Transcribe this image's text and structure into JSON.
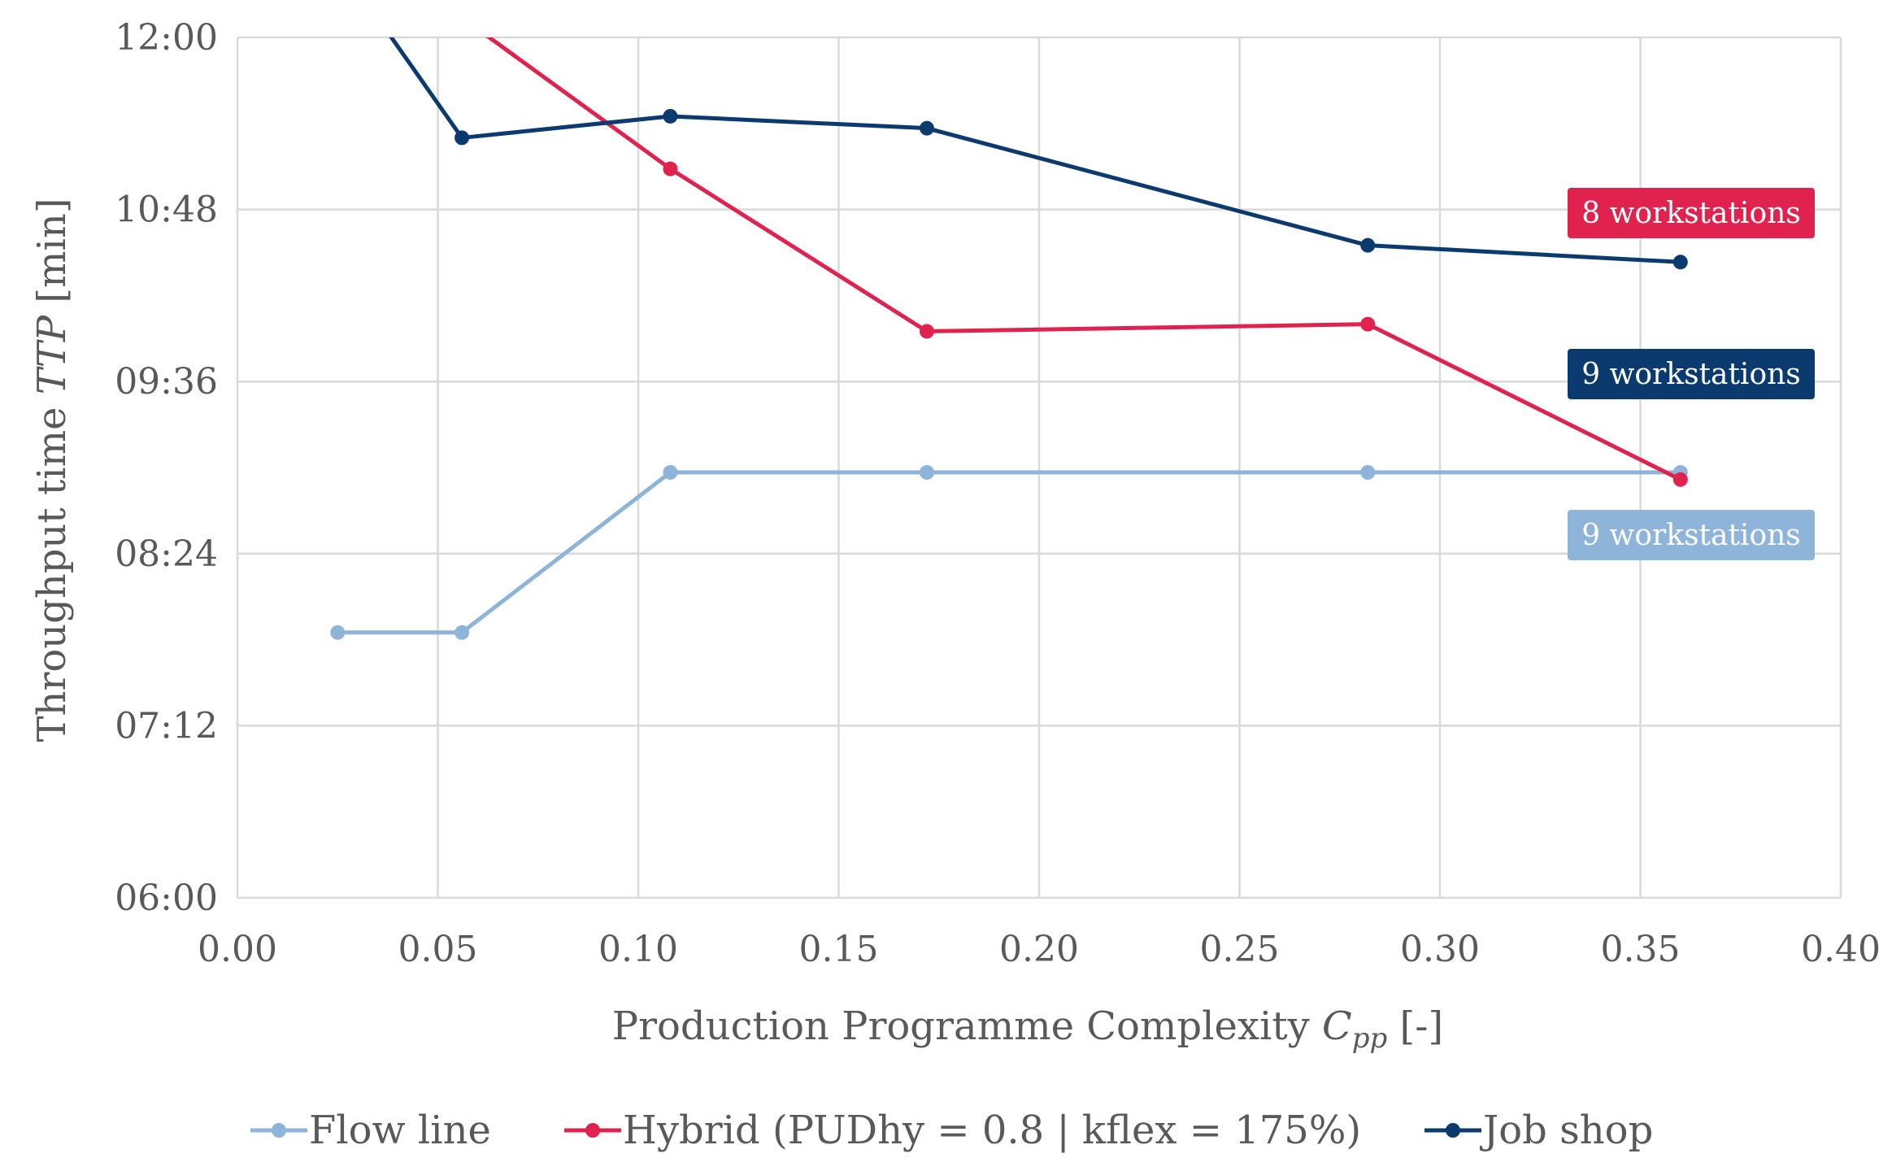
{
  "chart_data": {
    "type": "line",
    "title": "",
    "xlabel": "Production Programme Complexity",
    "xlabel_symbol": "C",
    "xlabel_subscript": "pp",
    "xlabel_unit": "[-]",
    "ylabel": "Throughput time",
    "ylabel_symbol": "TTP",
    "ylabel_unit": "[min]",
    "xlim": [
      0,
      0.4
    ],
    "ylim_minutes": [
      360,
      720
    ],
    "x_ticks": [
      "0.00",
      "0.05",
      "0.10",
      "0.15",
      "0.20",
      "0.25",
      "0.30",
      "0.35",
      "0.40"
    ],
    "x_tick_values": [
      0,
      0.05,
      0.1,
      0.15,
      0.2,
      0.25,
      0.3,
      0.35,
      0.4
    ],
    "y_ticks": [
      "06:00",
      "07:12",
      "08:24",
      "09:36",
      "10:48",
      "12:00"
    ],
    "y_tick_values": [
      360,
      432,
      504,
      576,
      648,
      720
    ],
    "grid": true,
    "legend_position": "bottom",
    "series": [
      {
        "name": "Flow line",
        "color": "#8eb4d9",
        "x": [
          0.025,
          0.056,
          0.108,
          0.172,
          0.282,
          0.36
        ],
        "y": [
          471,
          471,
          538,
          538,
          538,
          538
        ],
        "label": "9 workstations"
      },
      {
        "name": "Hybrid (PUDhy = 0.8  | kflex = 175%)",
        "color": "#e0234e",
        "x": [
          0.062,
          0.108,
          0.172,
          0.282,
          0.36
        ],
        "y": [
          721,
          665,
          597,
          600,
          535
        ],
        "label": "8 workstations"
      },
      {
        "name": "Job shop",
        "color": "#0b3a6e",
        "x": [
          0.038,
          0.056,
          0.108,
          0.172,
          0.282,
          0.36
        ],
        "y": [
          721,
          678,
          687,
          682,
          633,
          626
        ],
        "label": "9 workstations"
      }
    ]
  }
}
